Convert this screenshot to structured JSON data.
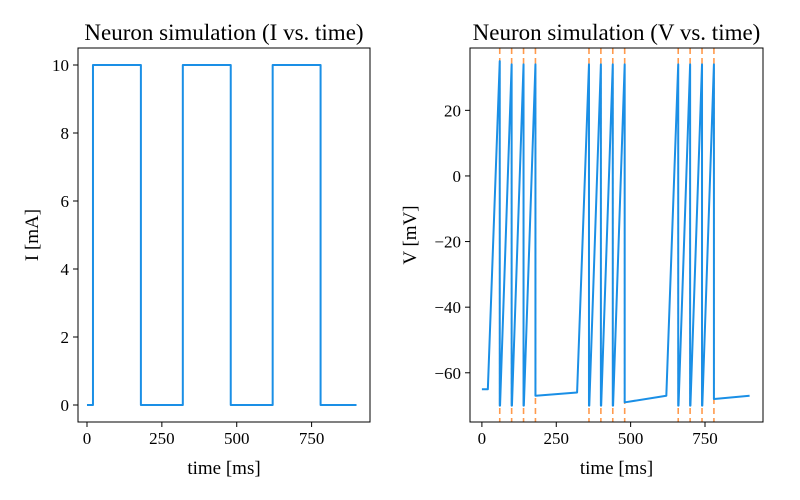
{
  "colors": {
    "series": "#1a8fe6",
    "spike": "#ff9a4d"
  },
  "chart_data": [
    {
      "type": "line",
      "title": "Neuron simulation (I vs. time)",
      "xlabel": "time [ms]",
      "ylabel": "I [mA]",
      "xlim": [
        -30,
        945
      ],
      "ylim": [
        -0.5,
        10.5
      ],
      "xticks": [
        0,
        250,
        500,
        750
      ],
      "yticks": [
        0,
        2,
        4,
        6,
        8,
        10
      ],
      "x_tick_labels": [
        "0",
        "250",
        "500",
        "750"
      ],
      "y_tick_labels": [
        "0",
        "2",
        "4",
        "6",
        "8",
        "10"
      ],
      "grid": false,
      "series": [
        {
          "x": [
            0,
            20,
            20,
            180,
            180,
            320,
            320,
            480,
            480,
            620,
            620,
            780,
            780,
            900
          ],
          "y": [
            0,
            0,
            10,
            10,
            0,
            0,
            10,
            10,
            0,
            0,
            10,
            10,
            0,
            0
          ]
        }
      ]
    },
    {
      "type": "line",
      "title": "Neuron simulation (V vs. time)",
      "xlabel": "time [ms]",
      "ylabel": "V [mV]",
      "xlim": [
        -40,
        945
      ],
      "ylim": [
        -75,
        39
      ],
      "xticks": [
        0,
        250,
        500,
        750
      ],
      "yticks": [
        -60,
        -40,
        -20,
        0,
        20
      ],
      "x_tick_labels": [
        "0",
        "250",
        "500",
        "750"
      ],
      "y_tick_labels": [
        "−60",
        "−40",
        "−20",
        "0",
        "20"
      ],
      "grid": false,
      "series": [
        {
          "x": [
            0,
            20,
            20,
            60,
            60,
            61,
            100,
            100,
            101,
            140,
            140,
            141,
            180,
            180,
            181,
            320,
            320,
            360,
            360,
            361,
            400,
            400,
            401,
            440,
            440,
            441,
            480,
            480,
            481,
            620,
            620,
            660,
            660,
            661,
            700,
            700,
            701,
            740,
            740,
            741,
            780,
            780,
            781,
            900
          ],
          "y": [
            -65,
            -65,
            -65,
            35,
            -70,
            -70,
            34,
            -70,
            -70,
            34,
            -70,
            -70,
            34,
            -67,
            -67,
            -66,
            -66,
            34,
            -70,
            -70,
            34,
            -70,
            -70,
            34,
            -70,
            -70,
            34,
            -69,
            -69,
            -67,
            -67,
            34,
            -70,
            -70,
            34,
            -70,
            -70,
            34,
            -70,
            -70,
            34,
            -68,
            -68,
            -67
          ]
        }
      ],
      "spike_times": [
        60,
        100,
        140,
        180,
        360,
        400,
        440,
        480,
        660,
        700,
        740,
        780
      ]
    }
  ]
}
